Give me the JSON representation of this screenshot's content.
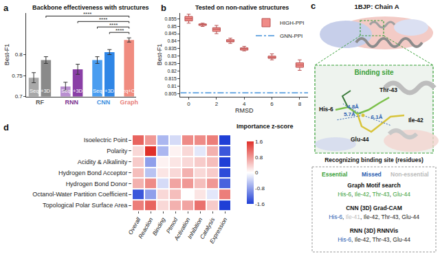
{
  "chart_data": [
    {
      "panel": "a",
      "type": "bar",
      "title": "Backbone effectiveness with structures",
      "ylabel": "Best-F1",
      "ylim": [
        0.7,
        0.9
      ],
      "yticks": [
        0.7,
        0.75,
        0.8
      ],
      "groups": [
        {
          "name": "RF",
          "color": "#555555",
          "bars": [
            {
              "label": "Seq",
              "value": 0.745,
              "error": 0.012,
              "color": "#a8a8a8"
            },
            {
              "label": "+3D",
              "value": 0.787,
              "error": 0.008,
              "color": "#8a8a8a"
            }
          ]
        },
        {
          "name": "RNN",
          "color": "#7b2d8e",
          "bars": [
            {
              "label": "Seq",
              "value": 0.724,
              "error": 0.01,
              "color": "#b98fd0"
            },
            {
              "label": "+3D",
              "value": 0.765,
              "error": 0.012,
              "color": "#8a3fa6"
            }
          ]
        },
        {
          "name": "CNN",
          "color": "#3c8fe0",
          "bars": [
            {
              "label": "Seq",
              "value": 0.787,
              "error": 0.008,
              "color": "#4a9df0"
            },
            {
              "label": "+3D",
              "value": 0.806,
              "error": 0.006,
              "color": "#2f86e6"
            }
          ]
        },
        {
          "name": "Graph",
          "color": "#e8807a",
          "bars": [
            {
              "label": "Seq+CM",
              "value": 0.835,
              "error": 0.005,
              "color": "#f08c80"
            }
          ]
        }
      ],
      "significance": [
        {
          "from": {
            "group": "RF",
            "bar": "+3D"
          },
          "to": {
            "group": "Graph",
            "bar": "Seq+CM"
          },
          "label": "****"
        },
        {
          "from": {
            "group": "RNN",
            "bar": "+3D"
          },
          "to": {
            "group": "Graph",
            "bar": "Seq+CM"
          },
          "label": "****"
        },
        {
          "from": {
            "group": "CNN",
            "bar": "Seq"
          },
          "to": {
            "group": "Graph",
            "bar": "Seq+CM"
          },
          "label": "****"
        },
        {
          "from": {
            "group": "CNN",
            "bar": "+3D"
          },
          "to": {
            "group": "Graph",
            "bar": "Seq+CM"
          },
          "label": "****"
        }
      ]
    },
    {
      "panel": "b",
      "type": "box",
      "title": "Tested on non-native structures",
      "xlabel": "RMSD",
      "ylabel": "Best-F1",
      "xlim": [
        -0.6,
        8.6
      ],
      "xticks": [
        0,
        2,
        4,
        6,
        8
      ],
      "ylim": [
        0.803,
        0.859
      ],
      "yticks": [
        0.805,
        0.81,
        0.815,
        0.82,
        0.825,
        0.83,
        0.835,
        0.84,
        0.845,
        0.85,
        0.855
      ],
      "legend": "top-right",
      "series": [
        {
          "name": "HIGH-PPI",
          "type": "box",
          "color": "#f08c88",
          "x": [
            0,
            1,
            2,
            3,
            4,
            6,
            8
          ],
          "q1": [
            0.8535,
            0.8505,
            0.8465,
            0.8395,
            0.834,
            0.8285,
            0.8225
          ],
          "median": [
            0.855,
            0.851,
            0.848,
            0.84,
            0.835,
            0.829,
            0.824
          ],
          "q3": [
            0.8565,
            0.8515,
            0.849,
            0.841,
            0.8355,
            0.83,
            0.8255
          ],
          "lowerfence": [
            0.852,
            0.8498,
            0.845,
            0.8385,
            0.8335,
            0.8275,
            0.8205
          ],
          "upperfence": [
            0.858,
            0.852,
            0.8505,
            0.842,
            0.8365,
            0.8315,
            0.8275
          ]
        },
        {
          "name": "GNN-PPI",
          "type": "line",
          "line_style": "dashdot",
          "color": "#3f8fd9",
          "value": 0.8055
        }
      ]
    },
    {
      "panel": "d",
      "type": "heatmap",
      "colorbar_title": "Importance z-score",
      "rows": [
        "Isoelectric Point",
        "Polarity",
        "Acidity & Alkalinity",
        "Hydrogen Bond Acceptor",
        "Hydrogen Bond Donor",
        "Octanol-Water Partition Coefficient",
        "Topological Polar Surface Area"
      ],
      "columns": [
        "Overall",
        "Reaction",
        "Binding",
        "Ptmod",
        "Activation",
        "Inhibition",
        "Catalysis",
        "Expression"
      ],
      "cells": [
        [
          1.2,
          0.8,
          -0.6,
          -0.3,
          0.9,
          0.9,
          1.0,
          -1.6
        ],
        [
          0.3,
          1.6,
          -0.6,
          0.1,
          0.3,
          -0.2,
          0.6,
          -1.4
        ],
        [
          0.4,
          -0.8,
          0.1,
          0.2,
          0.3,
          0.4,
          0.5,
          -1.6
        ],
        [
          0.5,
          -0.5,
          0.2,
          0.3,
          0.6,
          0.3,
          0.4,
          -1.5
        ],
        [
          0.6,
          0.9,
          -0.3,
          0.7,
          0.8,
          0.5,
          0.8,
          -1.3
        ],
        [
          -1.4,
          -0.8,
          0.3,
          0.5,
          0.0,
          0.2,
          -0.2,
          1.0
        ],
        [
          1.0,
          1.2,
          0.3,
          0.6,
          0.7,
          1.1,
          0.4,
          -1.6
        ]
      ],
      "zlim": [
        -1.6,
        1.6
      ],
      "zticks": [
        -1.6,
        -0.8,
        0,
        0.8,
        1.6
      ],
      "colors": [
        "#1f3fd6",
        "#ffffff",
        "#e0302a"
      ]
    }
  ],
  "diagram": {
    "panel": "c",
    "title": "1BJP: Chain A",
    "site_label": "Binding site",
    "site_color": "#3aa13a",
    "residues": [
      "His-6",
      "Thr-43",
      "Ile-42",
      "Glu-44"
    ],
    "distances": [
      {
        "value": 4.8,
        "label": "4.8Å"
      },
      {
        "value": 5.7,
        "label": "5.7Å"
      },
      {
        "value": 6.1,
        "label": "6.1Å"
      }
    ],
    "distance_color": "#2a5db0",
    "recognition": {
      "heading": "Recognizing binding site (residues)",
      "separator": ", ",
      "legend": [
        {
          "name": "Essential",
          "color": "#3aa13a"
        },
        {
          "name": "Missed",
          "color": "#2a5db0"
        },
        {
          "name": "Non-essential",
          "color": "#bbbbbb"
        }
      ],
      "methods": [
        {
          "name": "Graph Motif search",
          "residues": [
            {
              "name": "His-6",
              "color": "#3aa13a"
            },
            {
              "name": "Ile-42",
              "color": "#3aa13a"
            },
            {
              "name": "Thr-43",
              "color": "#3aa13a"
            },
            {
              "name": "Glu-44",
              "color": "#3aa13a"
            }
          ]
        },
        {
          "name": "CNN (3D) Grad-CAM",
          "residues": [
            {
              "name": "His-6",
              "color": "#2a5db0"
            },
            {
              "name": "Ile-41",
              "color": "#bbbbbb"
            },
            {
              "name": "Ile-42",
              "color": "#222222"
            },
            {
              "name": "Thr-43",
              "color": "#222222"
            },
            {
              "name": "Glu-44",
              "color": "#222222"
            }
          ]
        },
        {
          "name": "RNN (3D) RNNVis",
          "residues": [
            {
              "name": "His-6",
              "color": "#2a5db0"
            },
            {
              "name": "Ile-42",
              "color": "#222222"
            },
            {
              "name": "Thr-43",
              "color": "#222222"
            },
            {
              "name": "Glu-44",
              "color": "#222222"
            }
          ]
        }
      ]
    }
  }
}
